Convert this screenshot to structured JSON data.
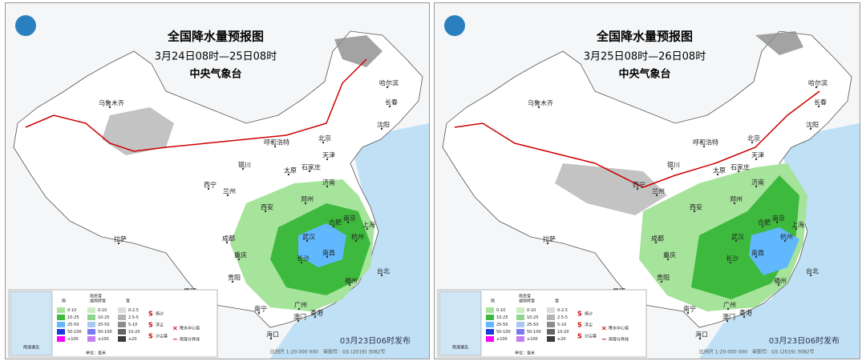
{
  "maps": [
    {
      "title": "全国降水量预报图",
      "period": "3月24日08时—25日08时",
      "issuer": "中央气象台",
      "release": "03月23日06时发布",
      "scale": "比例尺 1:20 000 000",
      "map_number": "审图号：GS (2019) 3082号"
    },
    {
      "title": "全国降水量预报图",
      "period": "3月25日08时—26日08时",
      "issuer": "中央气象台",
      "release": "03月23日06时发布",
      "scale": "比例尺 1:20 000 000",
      "map_number": "审图号：GS (2019) 3082号"
    }
  ],
  "cities": [
    "乌鲁木齐",
    "哈尔滨",
    "长春",
    "沈阳",
    "呼和浩特",
    "北京",
    "天津",
    "银川",
    "太原",
    "石家庄",
    "济南",
    "西宁",
    "兰州",
    "郑州",
    "西安",
    "合肥",
    "南京",
    "上海",
    "杭州",
    "武汉",
    "拉萨",
    "成都",
    "重庆",
    "长沙",
    "南昌",
    "贵阳",
    "福州",
    "台北",
    "昆明",
    "南宁",
    "广州",
    "香港",
    "澳门",
    "海口"
  ],
  "legend": {
    "rain": "雨",
    "sleet": [
      "雨夹雪",
      "或雨转雪"
    ],
    "snow": "雪",
    "rain_classes": [
      {
        "label": "0-10",
        "color": "#a6e39b"
      },
      {
        "label": "10-25",
        "color": "#3dba3d"
      },
      {
        "label": "25-50",
        "color": "#61b8ff"
      },
      {
        "label": "50-100",
        "color": "#1b3dd6"
      },
      {
        "label": "≥100",
        "color": "#fa00fa"
      }
    ],
    "sleet_classes": [
      {
        "label": "0-10",
        "color": "#c8ecc0"
      },
      {
        "label": "10-25",
        "color": "#8fd48f"
      },
      {
        "label": "25-50",
        "color": "#a9c8f0"
      },
      {
        "label": "50-100",
        "color": "#7a7af0"
      },
      {
        "label": "≥100",
        "color": "#c080f0"
      }
    ],
    "snow_classes": [
      {
        "label": "0-2.5",
        "color": "#dcdcdc"
      },
      {
        "label": "2.5-5",
        "color": "#b4b4b4"
      },
      {
        "label": "5-10",
        "color": "#8c8c8c"
      },
      {
        "label": "10-20",
        "color": "#646464"
      },
      {
        "label": "≥20",
        "color": "#3c3c3c"
      }
    ],
    "symbols": [
      "扬沙",
      "浮尘",
      "沙尘暴",
      "降水中心值",
      "雨雪分界线"
    ],
    "unit": "单位：毫米",
    "inset": "南海诸岛"
  }
}
